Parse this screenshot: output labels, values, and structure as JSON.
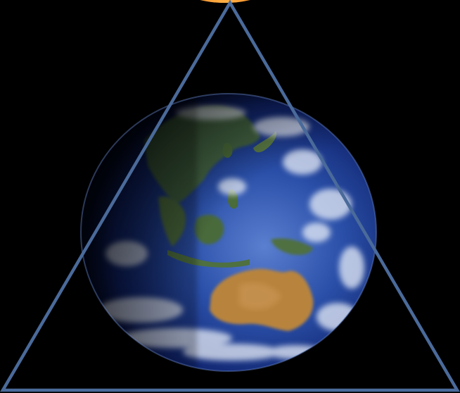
{
  "colors": {
    "background": "#000000",
    "ocean_deep": "#0a1a5c",
    "ocean": "#2a4fa8",
    "ocean_light": "#5a7fd0",
    "land_green": "#4a6b3a",
    "land_desert": "#b8843e",
    "cloud": "#e8eef8",
    "triangle_stroke": "#4a6a9a",
    "sun": "#f07a1a"
  },
  "elements": {
    "earth": "earth-globe",
    "triangle": "triangle-outline",
    "sun": "sun-arc"
  }
}
